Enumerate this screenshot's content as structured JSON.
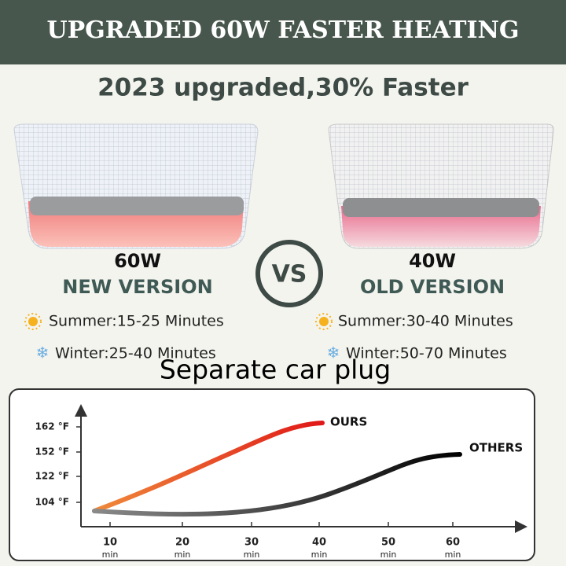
{
  "header": {
    "banner": "UPGRADED 60W FASTER HEATING",
    "headline": "2023 upgraded,30% Faster"
  },
  "products": [
    {
      "power": "60W",
      "version": "NEW VERSION",
      "summer": "Summer:15-25 Minutes",
      "winter": "Winter:25-40 Minutes"
    },
    {
      "power": "40W",
      "version": "OLD VERSION",
      "summer": "Summer:30-40 Minutes",
      "winter": "Winter:50-70 Minutes"
    }
  ],
  "vs": "VS",
  "caption": "Separate car plug",
  "chart": {
    "yticks": [
      "162 °F",
      "152 °F",
      "122 °F",
      "104 °F"
    ],
    "xticks": [
      {
        "value": "10",
        "unit": "min"
      },
      {
        "value": "20",
        "unit": "min"
      },
      {
        "value": "30",
        "unit": "min"
      },
      {
        "value": "40",
        "unit": "min"
      },
      {
        "value": "50",
        "unit": "min"
      },
      {
        "value": "60",
        "unit": "min"
      }
    ],
    "series": [
      "OURS",
      "OTHERS"
    ]
  }
}
